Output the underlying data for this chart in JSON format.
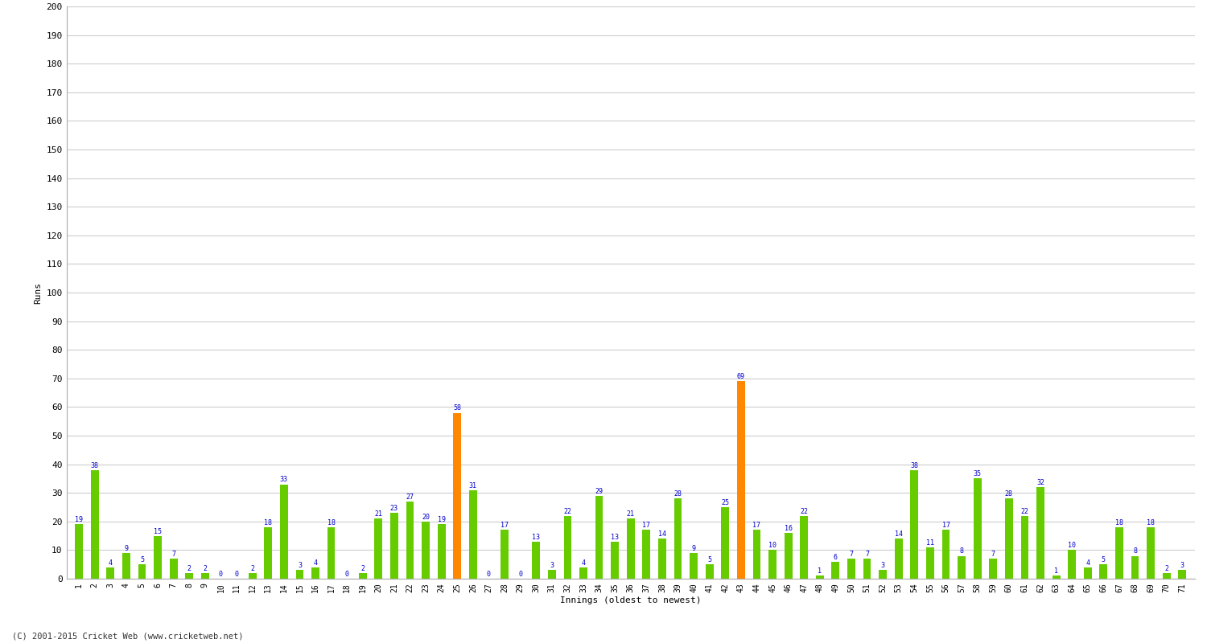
{
  "title": "",
  "xlabel": "Innings (oldest to newest)",
  "ylabel": "Runs",
  "values": [
    19,
    38,
    4,
    9,
    5,
    15,
    7,
    2,
    2,
    0,
    0,
    2,
    18,
    33,
    3,
    4,
    18,
    0,
    2,
    21,
    23,
    27,
    20,
    19,
    58,
    31,
    0,
    17,
    0,
    13,
    3,
    22,
    4,
    29,
    13,
    21,
    17,
    14,
    28,
    9,
    5,
    25,
    69,
    17,
    10,
    16,
    22,
    1,
    6,
    7,
    7,
    3,
    14,
    38,
    11,
    17,
    8,
    35,
    7,
    28,
    22,
    32,
    1,
    10,
    4,
    5,
    18,
    8,
    18,
    2,
    3
  ],
  "not_out": [
    false,
    false,
    false,
    false,
    false,
    false,
    false,
    false,
    false,
    false,
    false,
    false,
    false,
    false,
    false,
    false,
    false,
    false,
    false,
    false,
    false,
    false,
    false,
    false,
    true,
    false,
    false,
    false,
    false,
    false,
    false,
    false,
    false,
    false,
    false,
    false,
    false,
    false,
    false,
    false,
    false,
    false,
    true,
    false,
    false,
    false,
    false,
    false,
    false,
    false,
    false,
    false,
    false,
    false,
    false,
    false,
    false,
    false,
    false,
    false,
    false,
    false,
    false,
    false,
    false,
    false,
    false,
    false,
    false,
    false,
    false
  ],
  "innings_labels": [
    "1",
    "2",
    "3",
    "4",
    "5",
    "6",
    "7",
    "8",
    "9",
    "10",
    "11",
    "12",
    "13",
    "14",
    "15",
    "16",
    "17",
    "18",
    "19",
    "20",
    "21",
    "22",
    "23",
    "24",
    "25",
    "26",
    "27",
    "28",
    "29",
    "30",
    "31",
    "32",
    "33",
    "34",
    "35",
    "36",
    "37",
    "38",
    "39",
    "40",
    "41",
    "42",
    "43",
    "44",
    "45",
    "46",
    "47",
    "48",
    "49",
    "50",
    "51",
    "52",
    "53",
    "54",
    "55",
    "56",
    "57",
    "58",
    "59",
    "60",
    "61",
    "62",
    "63",
    "64",
    "65",
    "66",
    "67",
    "68",
    "69",
    "70",
    "71"
  ],
  "bar_color_normal": "#66cc00",
  "bar_color_notout": "#ff8800",
  "label_color": "#0000cc",
  "background_color": "#ffffff",
  "grid_color": "#cccccc",
  "ylim": [
    0,
    200
  ],
  "yticks": [
    0,
    10,
    20,
    30,
    40,
    50,
    60,
    70,
    80,
    90,
    100,
    110,
    120,
    130,
    140,
    150,
    160,
    170,
    180,
    190,
    200
  ],
  "footer": "(C) 2001-2015 Cricket Web (www.cricketweb.net)",
  "bar_width": 0.5
}
